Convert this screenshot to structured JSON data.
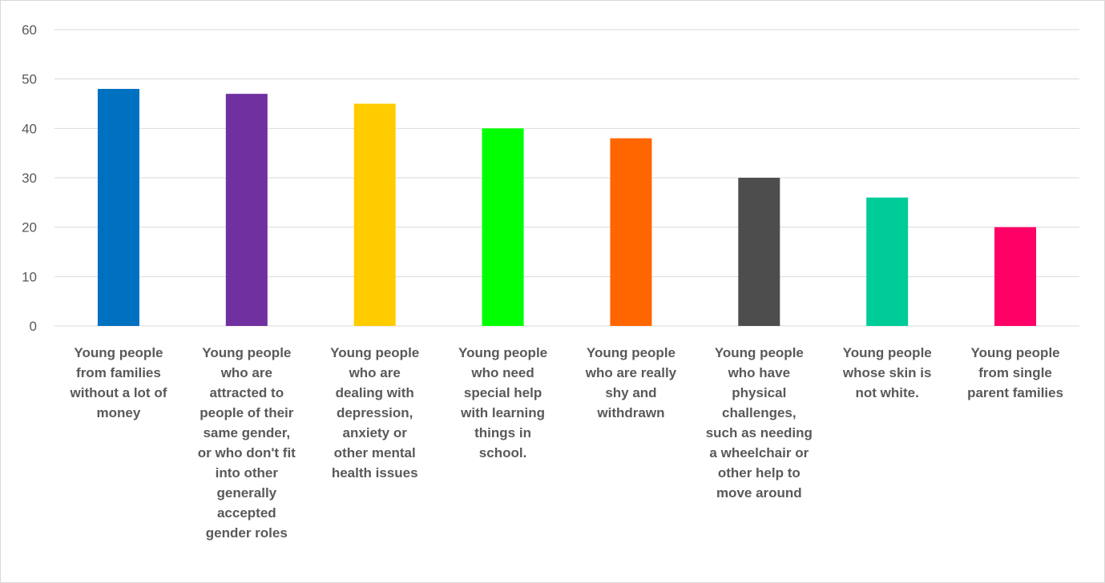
{
  "chart_data": {
    "type": "bar",
    "categories": [
      "Young people from families without a lot of money",
      "Young people who are attracted to people of their same gender, or who don't fit into other generally accepted gender roles",
      "Young people who are dealing with depression, anxiety or other mental health issues",
      "Young people who need special help with learning things in school.",
      "Young people who are really shy and withdrawn",
      "Young people who have physical challenges, such as needing a wheelchair or other help to move around",
      "Young people whose skin is not white.",
      "Young people from single parent families"
    ],
    "category_lines": [
      [
        "Young people",
        "from families",
        "without a lot of",
        "money"
      ],
      [
        "Young people",
        "who are",
        "attracted to",
        "people of their",
        "same gender,",
        "or who don't fit",
        "into other",
        "generally",
        "accepted",
        "gender roles"
      ],
      [
        "Young people",
        "who are",
        "dealing with",
        "depression,",
        "anxiety or",
        "other mental",
        "health issues"
      ],
      [
        "Young people",
        "who need",
        "special help",
        "with learning",
        "things in",
        "school."
      ],
      [
        "Young people",
        "who are really",
        "shy and",
        "withdrawn"
      ],
      [
        "Young people",
        "who have",
        "physical",
        "challenges,",
        "such as needing",
        "a wheelchair or",
        "other help to",
        "move around"
      ],
      [
        "Young people",
        "whose skin is",
        "not white."
      ],
      [
        "Young people",
        "from single",
        "parent families"
      ]
    ],
    "values": [
      48,
      47,
      45,
      40,
      38,
      30,
      26,
      20
    ],
    "colors": [
      "#0070C0",
      "#7030A0",
      "#FFCC00",
      "#00FF00",
      "#FF6600",
      "#4D4D4D",
      "#00CC99",
      "#FF0066"
    ],
    "title": "",
    "xlabel": "",
    "ylabel": "",
    "ylim": [
      0,
      60
    ],
    "yticks": [
      0,
      10,
      20,
      30,
      40,
      50,
      60
    ],
    "grid": true,
    "legend": "none"
  }
}
